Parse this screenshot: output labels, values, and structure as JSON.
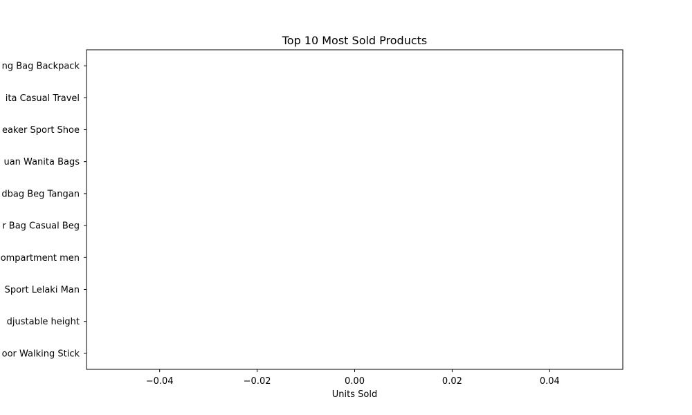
{
  "chart_data": {
    "type": "bar",
    "orientation": "horizontal",
    "title": "Top 10 Most Sold Products",
    "xlabel": "Units Sold",
    "ylabel": "",
    "xlim": [
      -0.055,
      0.055
    ],
    "xticks": [
      -0.04,
      -0.02,
      0.0,
      0.02,
      0.04
    ],
    "xtick_labels": [
      "−0.04",
      "−0.02",
      "0.00",
      "0.02",
      "0.04"
    ],
    "categories": [
      "oor Walking Stick",
      "djustable height",
      "Sport Lelaki Man",
      "ompartment men",
      "r Bag Casual Beg",
      "dbag Beg Tangan",
      "uan Wanita Bags",
      "eaker Sport Shoe",
      "ita Casual Travel",
      "ng Bag Backpack"
    ],
    "values": [
      0,
      0,
      0,
      0,
      0,
      0,
      0,
      0,
      0,
      0
    ],
    "grid": false,
    "legend": "none",
    "colors": {
      "bar": "#1f77b4",
      "axis": "#000000",
      "background": "#ffffff"
    }
  }
}
